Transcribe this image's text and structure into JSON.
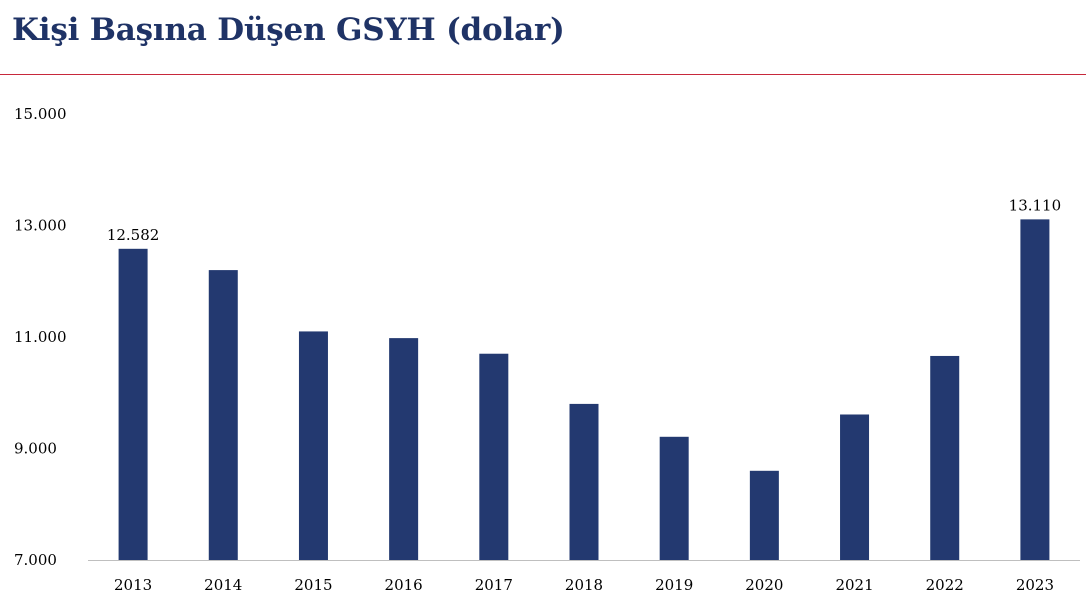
{
  "header": {
    "title": "Kişi Başına Düşen GSYH (dolar)",
    "rule_color": "#c7283b"
  },
  "chart_data": {
    "type": "bar",
    "title": "Kişi Başına Düşen GSYH (dolar)",
    "xlabel": "",
    "ylabel": "",
    "categories": [
      "2013",
      "2014",
      "2015",
      "2016",
      "2017",
      "2018",
      "2019",
      "2020",
      "2021",
      "2022",
      "2023"
    ],
    "values": [
      12582,
      12200,
      11100,
      10980,
      10700,
      9800,
      9210,
      8600,
      9610,
      10660,
      13110
    ],
    "ylim": [
      7000,
      15000
    ],
    "yticks": [
      {
        "value": 7000,
        "label": "7.000"
      },
      {
        "value": 9000,
        "label": "9.000"
      },
      {
        "value": 11000,
        "label": "11.000"
      },
      {
        "value": 13000,
        "label": "13.000"
      },
      {
        "value": 15000,
        "label": "15.000"
      }
    ],
    "data_labels": [
      {
        "category": "2013",
        "label": "12.582"
      },
      {
        "category": "2023",
        "label": "13.110"
      }
    ],
    "bar_color": "#233970",
    "axis_color": "#bfbfbf",
    "grid": false,
    "legend": "none"
  }
}
